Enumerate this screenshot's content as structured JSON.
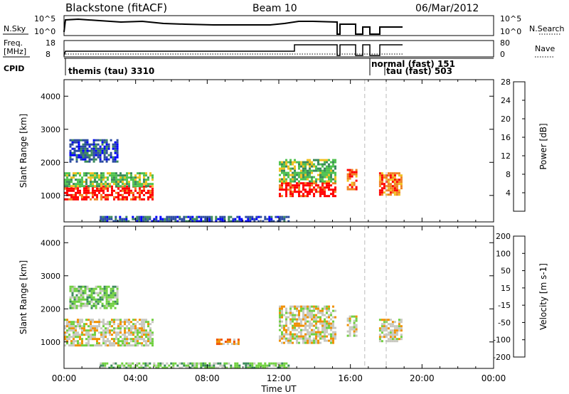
{
  "header": {
    "station": "Blackstone (fitACF)",
    "beam": "Beam 10",
    "date": "06/Mar/2012"
  },
  "strips": {
    "nsky_label": "N.Sky",
    "nsearch_label": "N.Search",
    "freq_label": "Freq.",
    "freq_unit": "[MHz]",
    "nave_label": "Nave",
    "cpid_label": "CPID",
    "nsky_ticks": [
      "10^5",
      "10^0"
    ],
    "nsearch_ticks": [
      "10^5",
      "10^0"
    ],
    "freq_ticks": [
      "18",
      "8"
    ],
    "nave_ticks": [
      "80",
      "0"
    ]
  },
  "cpid": [
    {
      "text": "themis (tau) 3310"
    },
    {
      "text": "normal (fast) 151"
    },
    {
      "text": "tau (fast) 503"
    }
  ],
  "colors": {
    "power": [
      "#0000ff",
      "#2a4aa0",
      "#3a8a5a",
      "#4fc24f",
      "#f0c020",
      "#f08020",
      "#ff0000"
    ],
    "velocity": [
      "#ff0000",
      "#f05000",
      "#f09000",
      "#c8c8c0",
      "#70d040",
      "#3a8a5a",
      "#2a4aa0"
    ]
  },
  "chart_data": [
    {
      "type": "heatmap",
      "name": "Power panel",
      "xlabel": "",
      "ylabel": "Slant Range [km]",
      "colorbar_label": "Power [dB]",
      "colorbar_ticks": [
        "4",
        "8",
        "12",
        "16",
        "20",
        "24",
        "28"
      ],
      "y_ticks": [
        "1000",
        "2000",
        "3000",
        "4000"
      ],
      "ylim": [
        200,
        4500
      ],
      "xlim": [
        0,
        24
      ],
      "bands": [
        {
          "t0": 0.0,
          "t1": 5.0,
          "r0": 900,
          "r1": 1300,
          "level": 6
        },
        {
          "t0": 0.0,
          "t1": 5.0,
          "r0": 1300,
          "r1": 1700,
          "level": 3
        },
        {
          "t0": 0.3,
          "t1": 3.0,
          "r0": 2000,
          "r1": 2700,
          "level": 1
        },
        {
          "t0": 12.0,
          "t1": 15.2,
          "r0": 1000,
          "r1": 1400,
          "level": 6
        },
        {
          "t0": 12.0,
          "t1": 15.2,
          "r0": 1400,
          "r1": 2100,
          "level": 3
        },
        {
          "t0": 15.8,
          "t1": 16.3,
          "r0": 1200,
          "r1": 1800,
          "level": 5
        },
        {
          "t0": 17.6,
          "t1": 18.8,
          "r0": 1000,
          "r1": 1700,
          "level": 5
        },
        {
          "t0": 2.0,
          "t1": 12.6,
          "r0": 220,
          "r1": 380,
          "level": 1
        }
      ]
    },
    {
      "type": "heatmap",
      "name": "Velocity panel",
      "xlabel": "Time UT",
      "ylabel": "Slant Range [km]",
      "colorbar_label": "Velocity [m s-1]",
      "colorbar_ticks": [
        "-200",
        "-100",
        "-50",
        "-15",
        "15",
        "50",
        "100",
        "200"
      ],
      "y_ticks": [
        "1000",
        "2000",
        "3000",
        "4000"
      ],
      "x_ticks": [
        "00:00",
        "04:00",
        "08:00",
        "12:00",
        "16:00",
        "20:00",
        "00:00"
      ],
      "ylim": [
        200,
        4500
      ],
      "xlim": [
        0,
        24
      ],
      "bands": [
        {
          "t0": 0.0,
          "t1": 5.0,
          "r0": 900,
          "r1": 1700,
          "level": 3
        },
        {
          "t0": 0.3,
          "t1": 3.0,
          "r0": 2000,
          "r1": 2700,
          "level": 4
        },
        {
          "t0": 12.0,
          "t1": 15.2,
          "r0": 1000,
          "r1": 2100,
          "level": 3
        },
        {
          "t0": 15.8,
          "t1": 16.3,
          "r0": 1200,
          "r1": 1800,
          "level": 3
        },
        {
          "t0": 17.6,
          "t1": 18.8,
          "r0": 1000,
          "r1": 1700,
          "level": 3
        },
        {
          "t0": 8.5,
          "t1": 9.8,
          "r0": 950,
          "r1": 1100,
          "level": 2
        },
        {
          "t0": 2.0,
          "t1": 12.6,
          "r0": 220,
          "r1": 380,
          "level": 4
        }
      ]
    }
  ]
}
